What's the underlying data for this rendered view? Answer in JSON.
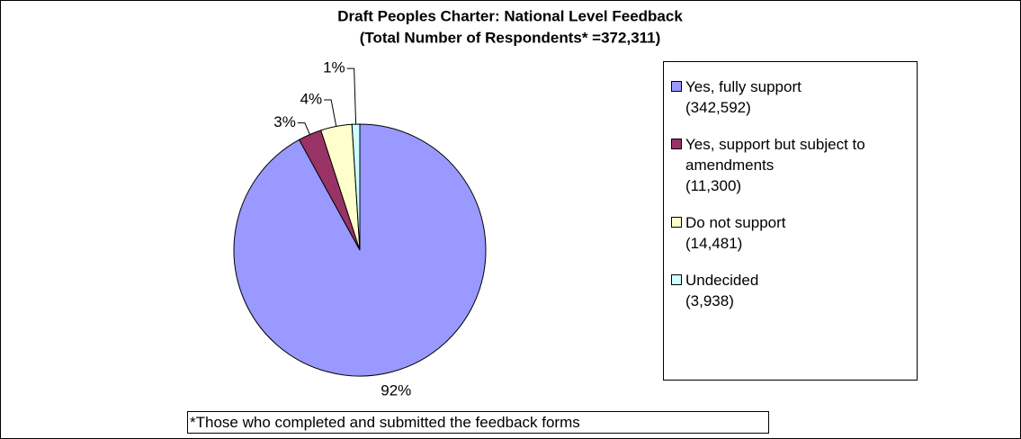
{
  "chart_data": {
    "type": "pie",
    "title": "Draft Peoples Charter: National Level Feedback",
    "subtitle": "(Total Number of Respondents* =372,311)",
    "categories": [
      "Yes, fully support",
      "Yes, support but subject to amendments",
      "Do not support",
      "Undecided"
    ],
    "counts": [
      "(342,592)",
      "(11,300)",
      "(14,481)",
      "(3,938)"
    ],
    "values": [
      92,
      3,
      4,
      1
    ],
    "value_labels": [
      "92%",
      "3%",
      "4%",
      "1%"
    ],
    "colors": [
      "#9999ff",
      "#993366",
      "#ffffcc",
      "#ccffff"
    ],
    "legend": "right",
    "footnote": "*Those who completed and submitted the feedback forms"
  }
}
